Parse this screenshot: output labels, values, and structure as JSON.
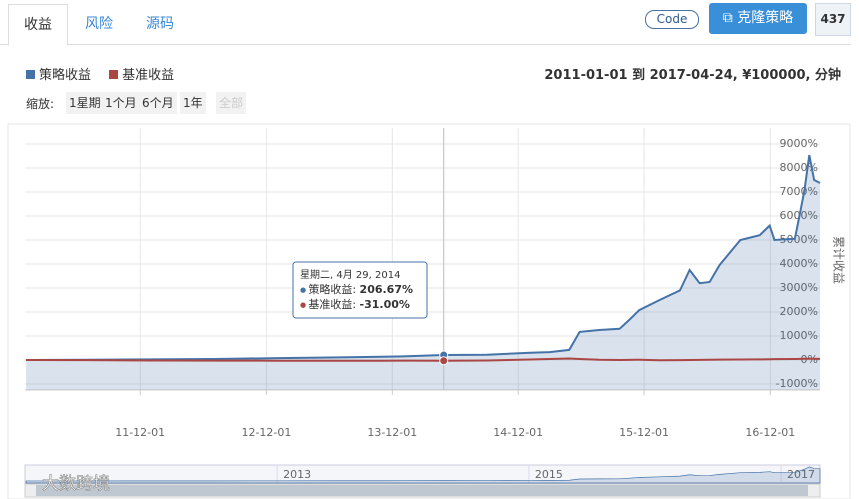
{
  "tabs": [
    "收益",
    "风险",
    "源码"
  ],
  "buttons": {
    "code": "Code",
    "clone": "克隆策略",
    "count": "437"
  },
  "info": "2011-01-01 到 2017-04-24, ¥100000, 分钟",
  "zoom": {
    "label": "缩放:",
    "options": [
      "1星期",
      "1个月",
      "6个月",
      "1年",
      "全部"
    ]
  },
  "watermark": "大数跨境",
  "chart_data": {
    "type": "line",
    "x": [
      "2011-01-04",
      "2011-07-01",
      "2012-01-04",
      "2012-07-02",
      "2013-01-04",
      "2013-07-01",
      "2014-01-02",
      "2014-04-29",
      "2014-09-01",
      "2015-01-05",
      "2015-03-02",
      "2015-04-28",
      "2015-05-28",
      "2015-07-24",
      "2015-09-21",
      "2015-10-19",
      "2015-11-17",
      "2016-01-15",
      "2016-03-14",
      "2016-04-11",
      "2016-05-10",
      "2016-06-08",
      "2016-07-07",
      "2016-09-05",
      "2016-10-31",
      "2016-11-29",
      "2016-12-13",
      "2017-02-10",
      "2017-02-24",
      "2017-03-10",
      "2017-03-24",
      "2017-04-07",
      "2017-04-24"
    ],
    "series": [
      {
        "name": "策略收益",
        "color": "#4572a7",
        "values": [
          0,
          10,
          25,
          40,
          80,
          110,
          150,
          206.67,
          220,
          300,
          330,
          420,
          1170,
          1250,
          1300,
          1670,
          2080,
          2500,
          2900,
          3750,
          3200,
          3250,
          3960,
          5000,
          5200,
          5600,
          5000,
          5050,
          6040,
          7080,
          8540,
          7500,
          7375
        ]
      },
      {
        "name": "基准收益",
        "color": "#aa4643",
        "values": [
          0,
          -5,
          -20,
          -25,
          -30,
          -30,
          -28,
          -31,
          -20,
          20,
          40,
          60,
          40,
          10,
          0,
          5,
          10,
          -10,
          -5,
          0,
          5,
          10,
          15,
          20,
          25,
          30,
          35,
          40,
          45,
          50,
          55,
          50,
          48
        ]
      }
    ],
    "xlim": [
      "2011-01-01",
      "2017-04-24"
    ],
    "xticks": [
      {
        "value": "2011-12-01",
        "label": "11-12-01"
      },
      {
        "value": "2012-12-01",
        "label": "12-12-01"
      },
      {
        "value": "2013-12-01",
        "label": "13-12-01"
      },
      {
        "value": "2014-12-01",
        "label": "14-12-01"
      },
      {
        "value": "2015-12-01",
        "label": "15-12-01"
      },
      {
        "value": "2016-12-01",
        "label": "16-12-01"
      }
    ],
    "ylim": [
      -1250,
      9667
    ],
    "yticks": [
      {
        "value": -1000,
        "label": "-1000%"
      },
      {
        "value": 0,
        "label": "0%"
      },
      {
        "value": 1000,
        "label": "1000%"
      },
      {
        "value": 2000,
        "label": "2000%"
      },
      {
        "value": 3000,
        "label": "3000%"
      },
      {
        "value": 4000,
        "label": "4000%"
      },
      {
        "value": 5000,
        "label": "5000%"
      },
      {
        "value": 6000,
        "label": "6000%"
      },
      {
        "value": 7000,
        "label": "7000%"
      },
      {
        "value": 8000,
        "label": "8000%"
      },
      {
        "value": 9000,
        "label": "9000%"
      }
    ],
    "y_label": "累计收益",
    "grid": true,
    "tooltip": {
      "x": "2014-04-29",
      "title": "星期二, 4月 29, 2014",
      "rows": [
        {
          "label": "策略收益: ",
          "value": "206.67%"
        },
        {
          "label": "基准收益: ",
          "value": "-31.00%"
        }
      ]
    },
    "navigator_ticks": [
      {
        "value": "2013-01-01",
        "label": "2013"
      },
      {
        "value": "2015-01-01",
        "label": "2015"
      },
      {
        "value": "2017-01-01",
        "label": "2017"
      }
    ]
  }
}
